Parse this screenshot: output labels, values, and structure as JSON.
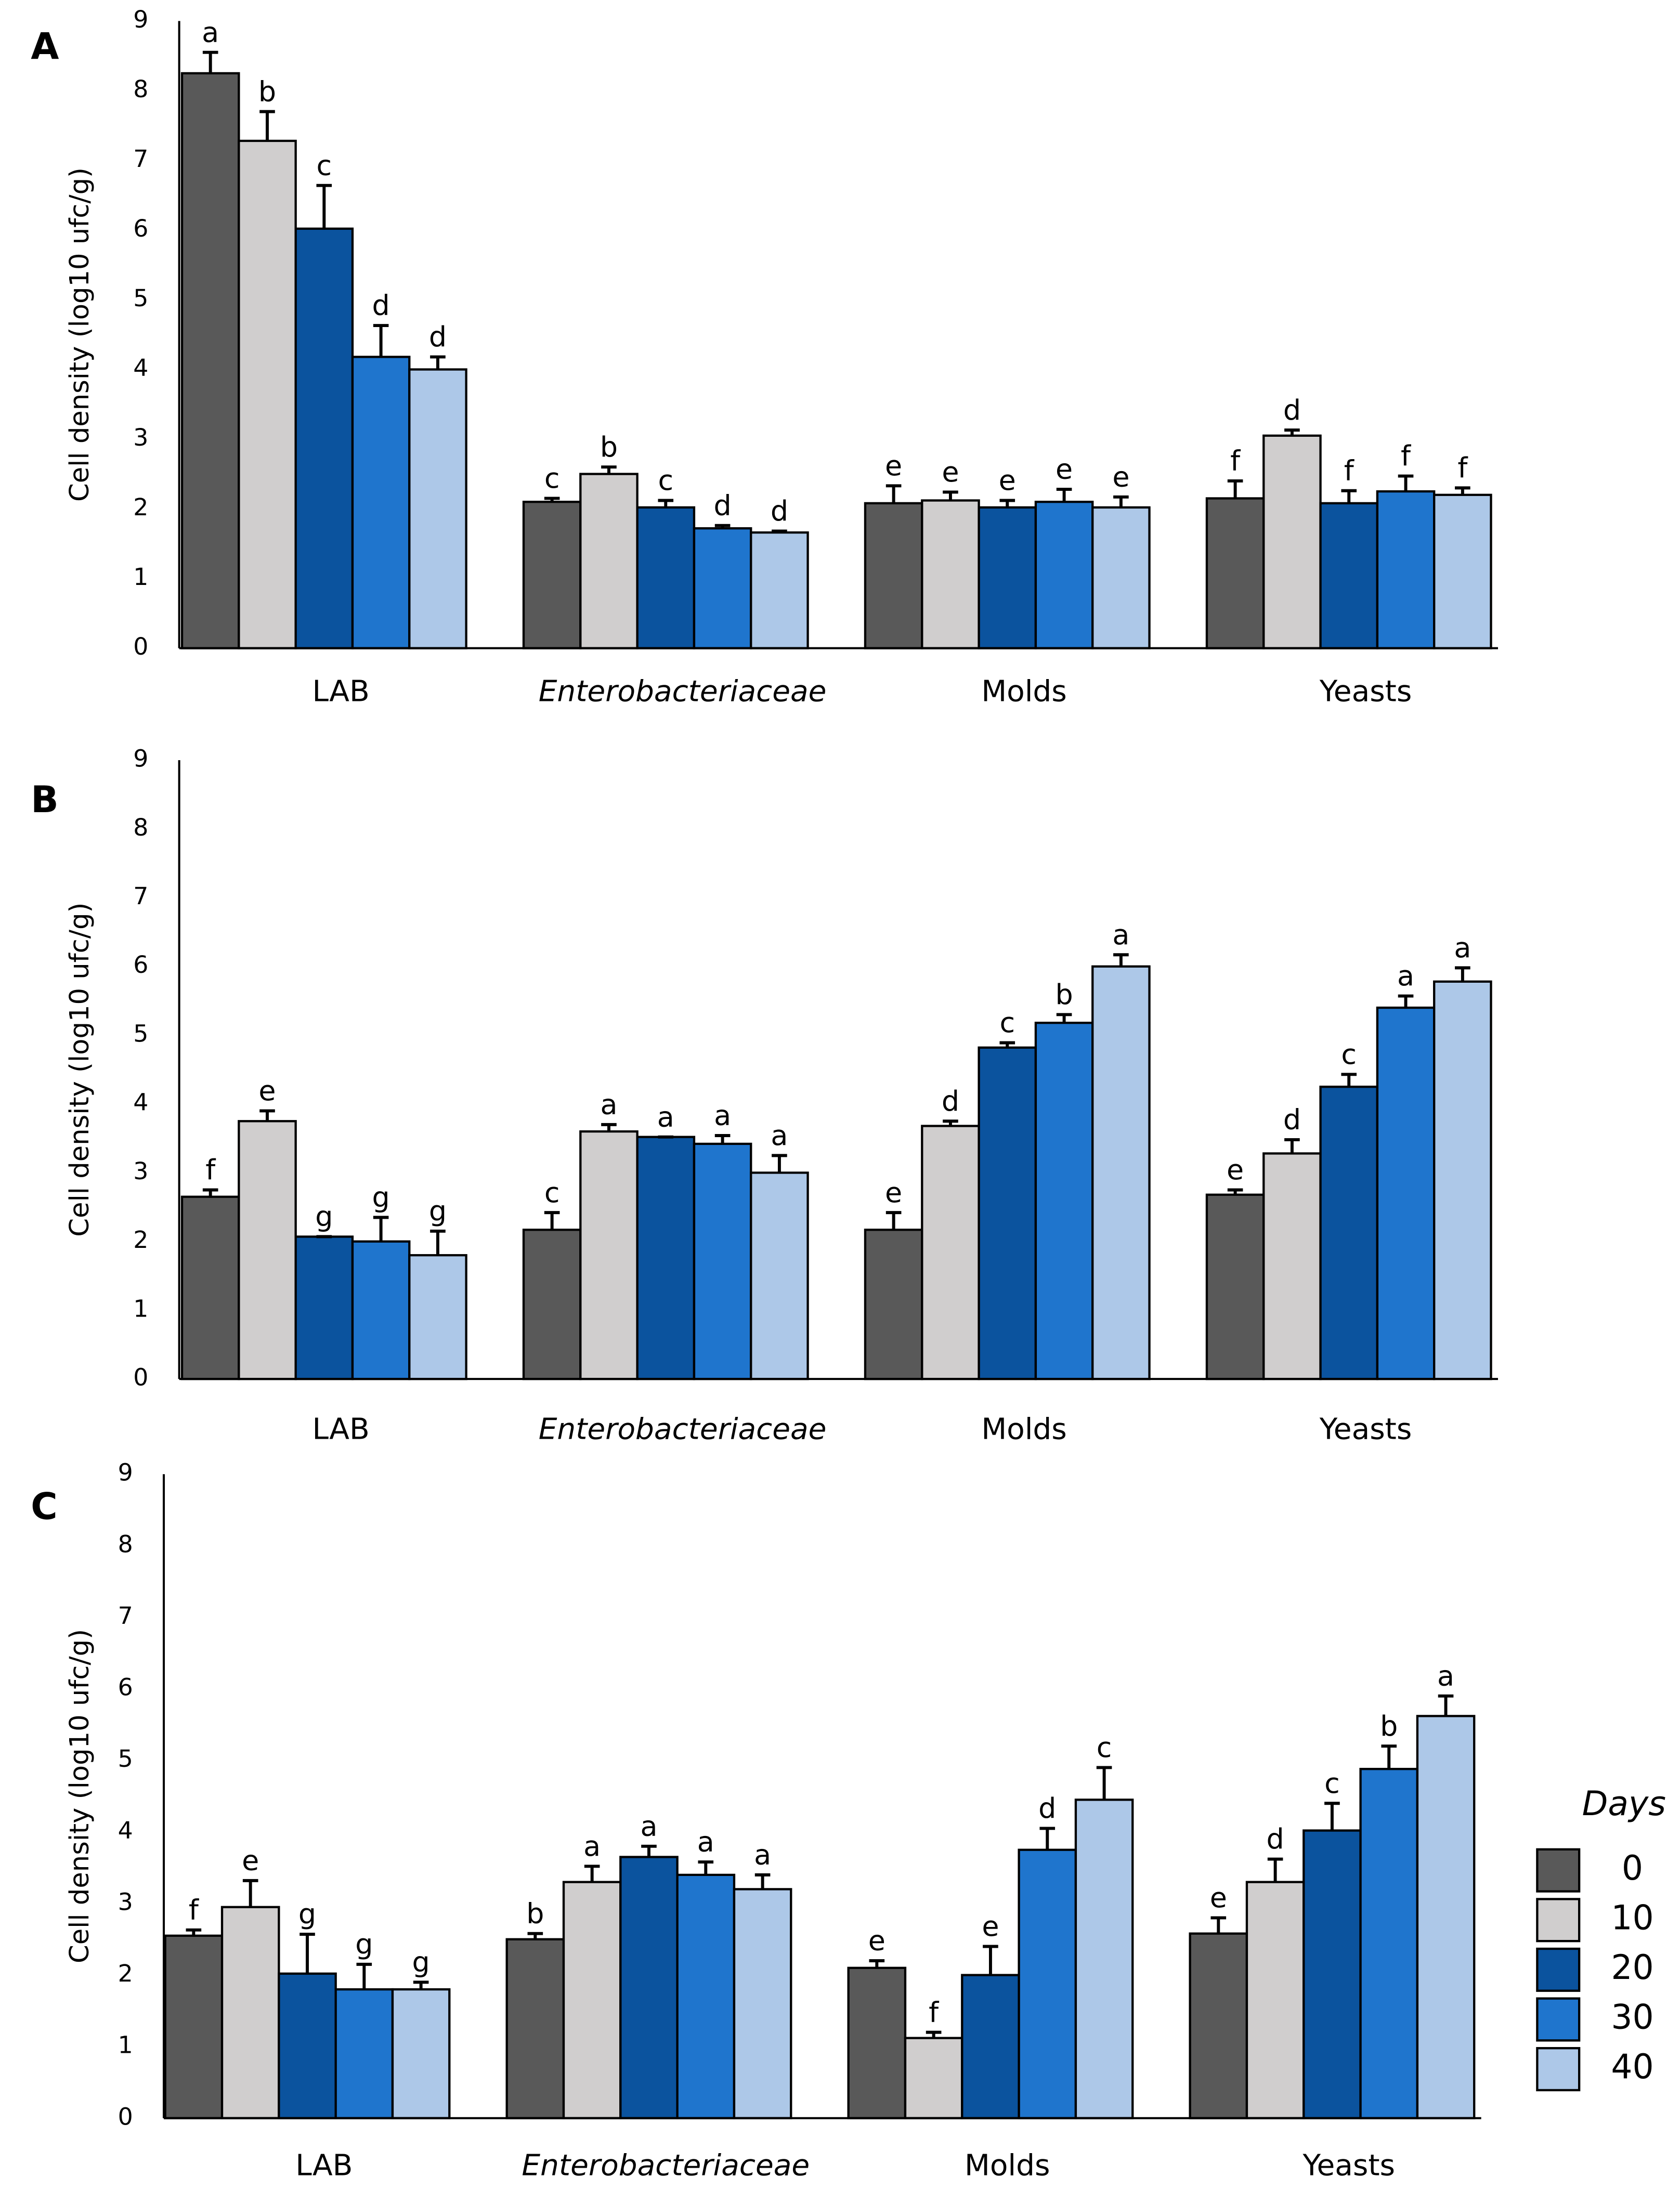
{
  "chart_data": [
    {
      "type": "bar",
      "panel": "A",
      "ylabel": "Cell density (log10 ufc/g)",
      "categories": [
        "LAB",
        "Enterobacteriaceae",
        "Molds",
        "Yeasts"
      ],
      "category_styles": [
        "normal",
        "italic",
        "normal",
        "normal"
      ],
      "ylim": [
        0,
        9
      ],
      "yticks": [
        0,
        1,
        2,
        3,
        4,
        5,
        6,
        7,
        8,
        9
      ],
      "series": [
        {
          "color": "#595959",
          "values": [
            8.25,
            2.1,
            2.08,
            2.15
          ],
          "errors": [
            0.3,
            0.05,
            0.25,
            0.25
          ],
          "letters": [
            "a",
            "c",
            "e",
            "f"
          ]
        },
        {
          "color": "#d0cece",
          "values": [
            7.28,
            2.5,
            2.12,
            3.05
          ],
          "errors": [
            0.42,
            0.1,
            0.12,
            0.08
          ],
          "letters": [
            "b",
            "b",
            "e",
            "d"
          ]
        },
        {
          "color": "#0b539e",
          "values": [
            6.02,
            2.02,
            2.02,
            2.08
          ],
          "errors": [
            0.62,
            0.1,
            0.1,
            0.18
          ],
          "letters": [
            "c",
            "c",
            "e",
            "f"
          ]
        },
        {
          "color": "#1f75cd",
          "values": [
            4.18,
            1.72,
            2.1,
            2.25
          ],
          "errors": [
            0.45,
            0.04,
            0.18,
            0.22
          ],
          "letters": [
            "d",
            "d",
            "e",
            "f"
          ]
        },
        {
          "color": "#adc8e8",
          "values": [
            4.0,
            1.66,
            2.02,
            2.2
          ],
          "errors": [
            0.18,
            0.02,
            0.15,
            0.1
          ],
          "letters": [
            "d",
            "d",
            "e",
            "f"
          ]
        }
      ]
    },
    {
      "type": "bar",
      "panel": "B",
      "ylabel": "Cell density (log10 ufc/g)",
      "categories": [
        "LAB",
        "Enterobacteriaceae",
        "Molds",
        "Yeasts"
      ],
      "category_styles": [
        "normal",
        "italic",
        "normal",
        "normal"
      ],
      "ylim": [
        0,
        9
      ],
      "yticks": [
        0,
        1,
        2,
        3,
        4,
        5,
        6,
        7,
        8,
        9
      ],
      "series": [
        {
          "color": "#595959",
          "values": [
            2.65,
            2.17,
            2.17,
            2.68
          ],
          "errors": [
            0.1,
            0.25,
            0.25,
            0.07
          ],
          "letters": [
            "f",
            "c",
            "e",
            "e"
          ]
        },
        {
          "color": "#d0cece",
          "values": [
            3.75,
            3.6,
            3.68,
            3.28
          ],
          "errors": [
            0.15,
            0.1,
            0.07,
            0.2
          ],
          "letters": [
            "e",
            "a",
            "d",
            "d"
          ]
        },
        {
          "color": "#0b539e",
          "values": [
            2.07,
            3.52,
            4.82,
            4.25
          ],
          "errors": [
            0,
            0,
            0.07,
            0.18
          ],
          "letters": [
            "g",
            "a",
            "c",
            "c"
          ]
        },
        {
          "color": "#1f75cd",
          "values": [
            2.0,
            3.42,
            5.18,
            5.4
          ],
          "errors": [
            0.35,
            0.12,
            0.12,
            0.17
          ],
          "letters": [
            "g",
            "a",
            "b",
            "a"
          ]
        },
        {
          "color": "#adc8e8",
          "values": [
            1.8,
            3.0,
            6.0,
            5.78
          ],
          "errors": [
            0.35,
            0.25,
            0.17,
            0.2
          ],
          "letters": [
            "g",
            "a",
            "a",
            "a"
          ]
        }
      ]
    },
    {
      "type": "bar",
      "panel": "C",
      "ylabel": "Cell density (log10 ufc/g)",
      "categories": [
        "LAB",
        "Enterobacteriaceae",
        "Molds",
        "Yeasts"
      ],
      "category_styles": [
        "normal",
        "italic",
        "normal",
        "normal"
      ],
      "ylim": [
        0,
        9
      ],
      "yticks": [
        0,
        1,
        2,
        3,
        4,
        5,
        6,
        7,
        8,
        9
      ],
      "legend_title": "Days",
      "series": [
        {
          "name": "0",
          "color": "#595959",
          "values": [
            2.55,
            2.5,
            2.1,
            2.58
          ],
          "errors": [
            0.08,
            0.08,
            0.1,
            0.22
          ],
          "letters": [
            "f",
            "b",
            "e",
            "e"
          ]
        },
        {
          "name": "10",
          "color": "#d0cece",
          "values": [
            2.95,
            3.3,
            1.12,
            3.3
          ],
          "errors": [
            0.37,
            0.22,
            0.08,
            0.32
          ],
          "letters": [
            "e",
            "a",
            "f",
            "d"
          ]
        },
        {
          "name": "20",
          "color": "#0b539e",
          "values": [
            2.02,
            3.65,
            2.0,
            4.02
          ],
          "errors": [
            0.55,
            0.15,
            0.4,
            0.38
          ],
          "letters": [
            "g",
            "a",
            "e",
            "c"
          ]
        },
        {
          "name": "30",
          "color": "#1f75cd",
          "values": [
            1.8,
            3.4,
            3.75,
            4.88
          ],
          "errors": [
            0.35,
            0.18,
            0.3,
            0.32
          ],
          "letters": [
            "g",
            "a",
            "d",
            "b"
          ]
        },
        {
          "name": "40",
          "color": "#adc8e8",
          "values": [
            1.8,
            3.2,
            4.45,
            5.62
          ],
          "errors": [
            0.1,
            0.2,
            0.45,
            0.28
          ],
          "letters": [
            "g",
            "a",
            "c",
            "a"
          ]
        }
      ]
    }
  ]
}
